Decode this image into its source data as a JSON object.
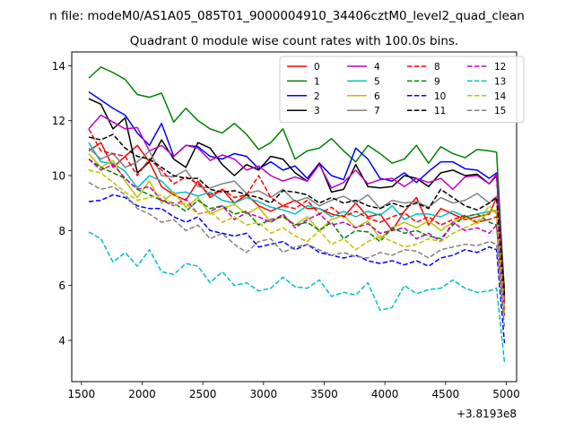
{
  "chart_data": {
    "type": "line",
    "suptitle": "n file: modeM0/AS1A05_085T01_9000004910_34406cztM0_level2_quad_clean",
    "title": "Quadrant 0 module wise count rates with 100.0s bins.",
    "xlabel": "",
    "ylabel": "",
    "x_offset_label": "+3.8193e8",
    "xlim": [
      1420,
      5085
    ],
    "ylim": [
      2.5,
      14.5
    ],
    "x_ticks": [
      1500,
      2000,
      2500,
      3000,
      3500,
      4000,
      4500,
      5000
    ],
    "y_ticks": [
      4,
      6,
      8,
      10,
      12,
      14
    ],
    "grid": false,
    "legend_position": "top-right",
    "legend_columns": 4,
    "x": [
      1560,
      1660,
      1760,
      1860,
      1960,
      2060,
      2160,
      2260,
      2360,
      2460,
      2560,
      2660,
      2760,
      2860,
      2960,
      3060,
      3160,
      3260,
      3360,
      3460,
      3560,
      3660,
      3760,
      3860,
      3960,
      4060,
      4160,
      4260,
      4360,
      4460,
      4560,
      4660,
      4760,
      4860,
      4920,
      4985
    ],
    "series": [
      {
        "name": "0",
        "color": "#ff0000",
        "dash": "solid",
        "values": [
          10.9,
          11.2,
          10.3,
          10.7,
          11.1,
          10.5,
          9.6,
          9.3,
          9.1,
          9.8,
          9.2,
          9.5,
          9.0,
          9.3,
          8.9,
          8.7,
          8.9,
          9.1,
          8.8,
          8.8,
          8.6,
          8.5,
          9.0,
          8.5,
          8.6,
          8.0,
          8.7,
          9.2,
          8.2,
          8.8,
          8.6,
          8.4,
          8.5,
          8.6,
          9.2,
          5.9
        ]
      },
      {
        "name": "1",
        "color": "#008000",
        "dash": "solid",
        "values": [
          13.55,
          13.95,
          13.75,
          13.5,
          12.95,
          12.85,
          13.0,
          11.95,
          12.45,
          12.0,
          11.7,
          11.55,
          11.9,
          11.5,
          10.95,
          11.2,
          11.7,
          10.6,
          10.9,
          11.0,
          11.35,
          10.9,
          10.5,
          11.1,
          10.8,
          10.45,
          10.6,
          11.1,
          10.45,
          11.05,
          10.8,
          10.65,
          10.95,
          10.9,
          10.85,
          5.7
        ]
      },
      {
        "name": "2",
        "color": "#0000ff",
        "dash": "solid",
        "values": [
          13.05,
          12.75,
          12.45,
          12.2,
          11.55,
          11.1,
          11.9,
          10.7,
          11.1,
          11.05,
          10.7,
          10.6,
          10.8,
          10.7,
          10.25,
          10.5,
          10.2,
          10.35,
          9.9,
          10.45,
          10.0,
          9.85,
          11.0,
          10.6,
          9.9,
          9.8,
          10.1,
          9.75,
          10.15,
          10.5,
          10.5,
          10.25,
          10.2,
          9.9,
          10.1,
          5.4
        ]
      },
      {
        "name": "3",
        "color": "#000000",
        "dash": "solid",
        "values": [
          12.8,
          12.6,
          11.7,
          12.1,
          10.1,
          10.5,
          11.3,
          10.6,
          10.3,
          11.2,
          11.0,
          10.4,
          10.0,
          10.4,
          10.2,
          10.7,
          10.6,
          10.1,
          9.8,
          10.45,
          9.4,
          9.5,
          10.4,
          9.6,
          9.55,
          9.6,
          10.0,
          9.9,
          9.6,
          10.1,
          10.2,
          10.0,
          10.05,
          9.7,
          10.0,
          5.6
        ]
      },
      {
        "name": "4",
        "color": "#c000c0",
        "dash": "solid",
        "values": [
          11.7,
          12.2,
          11.95,
          11.7,
          11.75,
          10.9,
          11.1,
          10.7,
          11.1,
          11.0,
          10.55,
          10.75,
          10.6,
          10.2,
          10.35,
          10.0,
          9.8,
          9.95,
          9.8,
          10.4,
          9.55,
          9.75,
          10.2,
          9.7,
          9.85,
          9.9,
          9.6,
          9.9,
          9.75,
          9.9,
          9.5,
          9.95,
          10.0,
          9.7,
          10.05,
          5.5
        ]
      },
      {
        "name": "5",
        "color": "#00bfbf",
        "dash": "solid",
        "values": [
          11.2,
          10.5,
          10.45,
          10.15,
          9.55,
          10.0,
          9.8,
          9.35,
          9.4,
          9.25,
          9.4,
          9.1,
          9.0,
          9.2,
          9.05,
          8.85,
          8.75,
          8.6,
          8.9,
          8.8,
          8.5,
          8.7,
          8.5,
          8.7,
          8.55,
          8.9,
          8.4,
          8.6,
          8.6,
          8.5,
          8.7,
          8.5,
          8.6,
          8.7,
          8.7,
          5.1
        ]
      },
      {
        "name": "6",
        "color": "#bfbf00",
        "dash": "solid",
        "values": [
          10.8,
          10.3,
          10.55,
          9.8,
          9.2,
          9.8,
          9.0,
          9.4,
          8.85,
          9.2,
          8.6,
          8.8,
          8.95,
          8.6,
          8.85,
          8.3,
          8.55,
          8.2,
          8.5,
          8.0,
          8.4,
          8.55,
          8.1,
          8.35,
          7.7,
          8.1,
          8.3,
          8.1,
          8.35,
          8.0,
          8.3,
          8.5,
          8.25,
          8.7,
          8.75,
          5.0
        ]
      },
      {
        "name": "7",
        "color": "#808080",
        "dash": "solid",
        "values": [
          11.0,
          10.6,
          10.8,
          10.3,
          10.5,
          10.9,
          10.0,
          9.95,
          10.2,
          9.6,
          9.55,
          9.7,
          9.8,
          9.35,
          9.45,
          9.2,
          9.5,
          9.05,
          9.2,
          8.9,
          9.1,
          9.25,
          9.0,
          9.3,
          8.8,
          9.1,
          9.0,
          9.05,
          8.85,
          9.2,
          9.0,
          9.1,
          9.35,
          9.0,
          9.25,
          5.3
        ]
      },
      {
        "name": "8",
        "color": "#ff0000",
        "dash": "dashed",
        "values": [
          11.7,
          10.9,
          10.8,
          10.7,
          10.0,
          10.6,
          10.2,
          9.7,
          9.95,
          9.7,
          9.3,
          9.5,
          9.2,
          9.3,
          10.0,
          9.2,
          8.9,
          8.8,
          9.1,
          8.6,
          8.85,
          8.5,
          8.7,
          8.45,
          8.3,
          8.5,
          8.65,
          8.3,
          8.5,
          8.2,
          8.4,
          8.55,
          8.3,
          8.4,
          8.5,
          5.2
        ]
      },
      {
        "name": "9",
        "color": "#008000",
        "dash": "dashed",
        "values": [
          10.6,
          10.3,
          10.1,
          9.9,
          9.5,
          9.3,
          9.1,
          9.0,
          8.7,
          9.1,
          8.8,
          8.9,
          8.6,
          8.7,
          8.2,
          8.4,
          8.5,
          8.2,
          8.3,
          8.0,
          8.3,
          7.7,
          8.0,
          7.95,
          7.6,
          8.1,
          7.9,
          8.0,
          7.8,
          7.7,
          8.2,
          8.5,
          8.6,
          8.3,
          8.2,
          4.9
        ]
      },
      {
        "name": "10",
        "color": "#0000ff",
        "dash": "dashed",
        "values": [
          9.05,
          9.1,
          9.3,
          9.2,
          8.9,
          8.8,
          8.8,
          8.5,
          8.3,
          8.5,
          8.0,
          7.9,
          7.8,
          7.9,
          7.4,
          7.5,
          7.6,
          7.3,
          7.5,
          7.2,
          7.1,
          7.0,
          7.1,
          6.9,
          6.8,
          6.9,
          6.75,
          6.9,
          6.7,
          7.0,
          7.1,
          7.3,
          7.2,
          7.4,
          7.3,
          3.9
        ]
      },
      {
        "name": "11",
        "color": "#000000",
        "dash": "dashed",
        "values": [
          11.4,
          11.3,
          11.5,
          11.0,
          10.7,
          10.6,
          10.3,
          10.0,
          9.9,
          9.9,
          9.5,
          9.4,
          9.45,
          9.3,
          9.2,
          9.0,
          9.45,
          9.4,
          9.3,
          9.0,
          9.2,
          9.0,
          9.1,
          8.9,
          8.8,
          9.0,
          8.85,
          9.0,
          8.8,
          9.5,
          9.2,
          8.9,
          8.75,
          9.0,
          9.2,
          5.6
        ]
      },
      {
        "name": "12",
        "color": "#c000c0",
        "dash": "dashed",
        "values": [
          10.6,
          10.2,
          10.4,
          9.9,
          9.5,
          9.6,
          9.1,
          8.9,
          9.15,
          8.6,
          8.7,
          8.9,
          8.4,
          8.65,
          8.5,
          8.3,
          8.6,
          8.1,
          8.4,
          8.6,
          8.2,
          8.3,
          8.1,
          8.25,
          7.9,
          8.0,
          8.1,
          7.7,
          7.9,
          7.6,
          8.3,
          8.0,
          8.1,
          7.9,
          8.2,
          4.9
        ]
      },
      {
        "name": "13",
        "color": "#00bfbf",
        "dash": "dashed",
        "values": [
          7.95,
          7.7,
          6.85,
          7.2,
          6.7,
          7.3,
          6.5,
          6.4,
          6.8,
          6.7,
          6.1,
          6.5,
          6.0,
          6.1,
          5.8,
          5.9,
          6.3,
          5.95,
          5.9,
          6.2,
          5.6,
          5.75,
          5.65,
          6.1,
          5.1,
          5.2,
          6.0,
          5.7,
          5.85,
          5.9,
          6.2,
          5.9,
          5.75,
          5.8,
          5.9,
          3.2
        ]
      },
      {
        "name": "14",
        "color": "#bfbf00",
        "dash": "dashed",
        "values": [
          10.2,
          10.1,
          9.75,
          9.4,
          9.1,
          9.2,
          9.3,
          8.9,
          9.0,
          8.6,
          8.7,
          8.3,
          8.5,
          8.2,
          8.3,
          7.9,
          8.1,
          7.8,
          7.6,
          8.0,
          7.5,
          7.7,
          7.3,
          7.6,
          7.8,
          7.6,
          7.4,
          7.5,
          7.7,
          7.6,
          7.9,
          8.1,
          8.3,
          8.9,
          8.6,
          5.0
        ]
      },
      {
        "name": "15",
        "color": "#808080",
        "dash": "dashed",
        "values": [
          9.75,
          9.5,
          9.6,
          9.3,
          8.8,
          8.6,
          8.3,
          8.4,
          8.0,
          8.2,
          7.7,
          7.9,
          7.5,
          7.2,
          7.6,
          7.7,
          7.2,
          7.4,
          7.5,
          7.3,
          7.1,
          7.2,
          7.05,
          7.0,
          7.2,
          7.1,
          7.3,
          7.25,
          7.0,
          7.3,
          7.4,
          7.5,
          7.45,
          7.6,
          7.5,
          4.5
        ]
      }
    ]
  }
}
